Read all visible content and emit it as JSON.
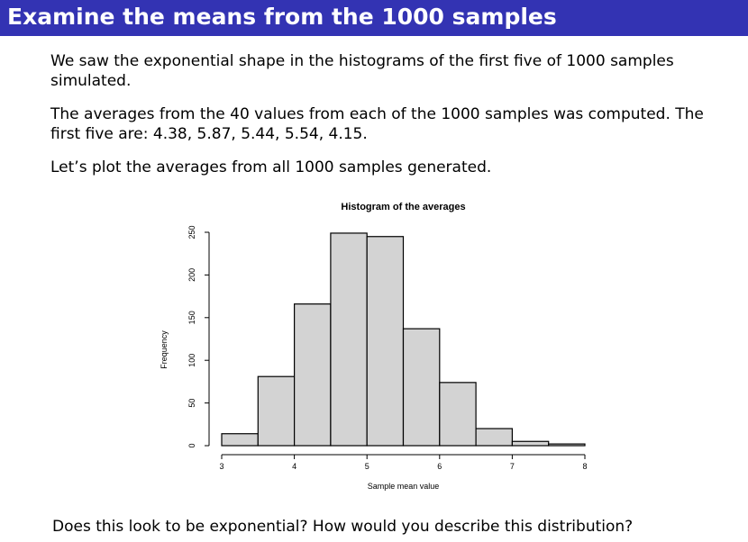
{
  "slide": {
    "title": "Examine the means from the 1000 samples",
    "paragraphs": [
      "We saw the exponential shape in the histograms of the first five of 1000 samples simulated.",
      "The averages from the 40 values from each of the 1000 samples was computed.  The first five are: 4.38, 5.87, 5.44, 5.54, 4.15.",
      "Let’s plot the averages from all 1000 samples generated."
    ],
    "question": "Does this look to be exponential?  How would you describe this distribution?"
  },
  "chart_data": {
    "type": "bar",
    "title": "Histogram of the averages",
    "xlabel": "Sample mean value",
    "ylabel": "Frequency",
    "bin_edges": [
      3,
      3.5,
      4,
      4.5,
      5,
      5.5,
      6,
      6.5,
      7,
      7.5,
      8
    ],
    "values": [
      14,
      81,
      166,
      249,
      245,
      137,
      74,
      20,
      5,
      2
    ],
    "xlim": [
      3,
      8
    ],
    "ylim": [
      0,
      250
    ],
    "xticks": [
      3,
      4,
      5,
      6,
      7,
      8
    ],
    "yticks": [
      0,
      50,
      100,
      150,
      200,
      250
    ],
    "bar_color": "#d3d3d3",
    "grid": false
  }
}
